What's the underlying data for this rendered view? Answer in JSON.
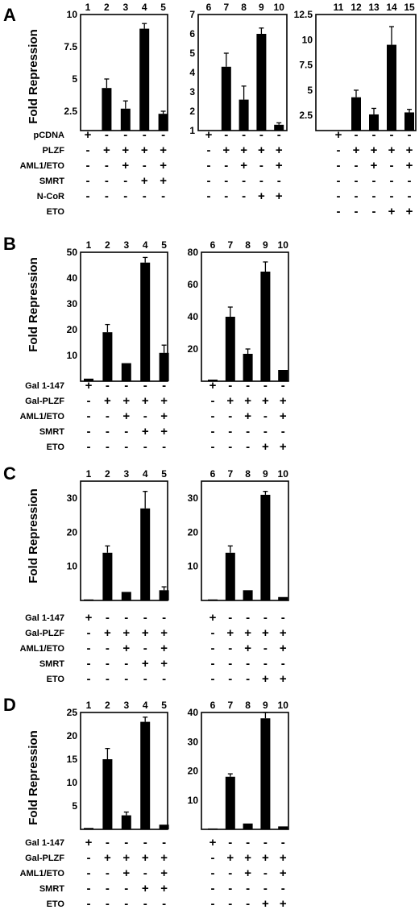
{
  "ylabel": "Fold Repression",
  "chart_data": [
    {
      "panel": "A",
      "type": "bar",
      "rows": [
        "pCDNA",
        "PLZF",
        "AML1/ETO",
        "SMRT",
        "N-CoR",
        "ETO"
      ],
      "charts": [
        {
          "lanes": [
            "1",
            "2",
            "3",
            "4",
            "5"
          ],
          "values": [
            1.0,
            4.3,
            2.7,
            8.9,
            2.3
          ],
          "errors": [
            0,
            0.7,
            0.6,
            0.4,
            0.2
          ],
          "ylim": [
            1,
            10
          ],
          "yticks": [
            "2.5",
            "5",
            "7.5",
            "10"
          ],
          "signs": [
            [
              "+",
              "-",
              "-",
              "-",
              "-"
            ],
            [
              "-",
              "+",
              "+",
              "+",
              "+"
            ],
            [
              "-",
              "-",
              "+",
              "-",
              "+"
            ],
            [
              "-",
              "-",
              "-",
              "+",
              "+"
            ],
            [
              "-",
              "-",
              "-",
              "-",
              "-"
            ],
            null
          ]
        },
        {
          "lanes": [
            "6",
            "7",
            "8",
            "9",
            "10"
          ],
          "values": [
            1.0,
            4.3,
            2.6,
            6.0,
            1.3
          ],
          "errors": [
            0,
            0.7,
            0.7,
            0.3,
            0.1
          ],
          "ylim": [
            1,
            7
          ],
          "yticks": [
            "1",
            "2",
            "3",
            "4",
            "5",
            "6",
            "7"
          ],
          "signs": [
            [
              "+",
              "-",
              "-",
              "-",
              "-"
            ],
            [
              "-",
              "+",
              "+",
              "+",
              "+"
            ],
            [
              "-",
              "-",
              "+",
              "-",
              "+"
            ],
            [
              "-",
              "-",
              "-",
              "-",
              "-"
            ],
            [
              "-",
              "-",
              "-",
              "+",
              "+"
            ],
            null
          ]
        },
        {
          "lanes": [
            "11",
            "12",
            "13",
            "14",
            "15"
          ],
          "values": [
            1.0,
            4.3,
            2.6,
            9.5,
            2.8
          ],
          "errors": [
            0,
            0.7,
            0.6,
            1.8,
            0.3
          ],
          "ylim": [
            1,
            12.5
          ],
          "yticks": [
            "2.5",
            "5",
            "7.5",
            "10",
            "12.5"
          ],
          "signs": [
            [
              "+",
              "-",
              "-",
              "-",
              "-"
            ],
            [
              "-",
              "+",
              "+",
              "+",
              "+"
            ],
            [
              "-",
              "-",
              "+",
              "-",
              "+"
            ],
            [
              "-",
              "-",
              "-",
              "-",
              "-"
            ],
            [
              "-",
              "-",
              "-",
              "-",
              "-"
            ],
            [
              "-",
              "-",
              "-",
              "+",
              "+"
            ]
          ]
        }
      ]
    },
    {
      "panel": "B",
      "type": "bar",
      "rows": [
        "Gal 1-147",
        "Gal-PLZF",
        "AML1/ETO",
        "SMRT",
        "ETO"
      ],
      "charts": [
        {
          "lanes": [
            "1",
            "2",
            "3",
            "4",
            "5"
          ],
          "values": [
            1,
            19,
            7,
            46,
            11
          ],
          "errors": [
            0,
            3,
            0,
            2,
            3
          ],
          "ylim": [
            0,
            50
          ],
          "yticks": [
            "10",
            "20",
            "30",
            "40",
            "50"
          ],
          "signs": [
            [
              "+",
              "-",
              "-",
              "-",
              "-"
            ],
            [
              "-",
              "+",
              "+",
              "+",
              "+"
            ],
            [
              "-",
              "-",
              "+",
              "-",
              "+"
            ],
            [
              "-",
              "-",
              "-",
              "+",
              "+"
            ],
            [
              "-",
              "-",
              "-",
              "-",
              "-"
            ]
          ]
        },
        {
          "lanes": [
            "6",
            "7",
            "8",
            "9",
            "10"
          ],
          "values": [
            1,
            40,
            17,
            68,
            7
          ],
          "errors": [
            0,
            6,
            3,
            6,
            0
          ],
          "ylim": [
            0,
            80
          ],
          "yticks": [
            "20",
            "40",
            "60",
            "80"
          ],
          "signs": [
            [
              "+",
              "-",
              "-",
              "-",
              "-"
            ],
            [
              "-",
              "+",
              "+",
              "+",
              "+"
            ],
            [
              "-",
              "-",
              "+",
              "-",
              "+"
            ],
            [
              "-",
              "-",
              "-",
              "-",
              "-"
            ],
            [
              "-",
              "-",
              "-",
              "+",
              "+"
            ]
          ]
        }
      ]
    },
    {
      "panel": "C",
      "type": "bar",
      "rows": [
        "Gal 1-147",
        "Gal-PLZF",
        "AML1/ETO",
        "SMRT",
        "ETO"
      ],
      "charts": [
        {
          "lanes": [
            "1",
            "2",
            "3",
            "4",
            "5"
          ],
          "values": [
            0.3,
            14,
            2.5,
            27,
            3
          ],
          "errors": [
            0,
            2,
            0,
            5,
            1
          ],
          "ylim": [
            0,
            35
          ],
          "yticks": [
            "10",
            "20",
            "30"
          ],
          "signs": [
            [
              "+",
              "-",
              "-",
              "-",
              "-"
            ],
            [
              "-",
              "+",
              "+",
              "+",
              "+"
            ],
            [
              "-",
              "-",
              "+",
              "-",
              "+"
            ],
            [
              "-",
              "-",
              "-",
              "+",
              "+"
            ],
            [
              "-",
              "-",
              "-",
              "-",
              "-"
            ]
          ]
        },
        {
          "lanes": [
            "6",
            "7",
            "8",
            "9",
            "10"
          ],
          "values": [
            0.3,
            14,
            3,
            31,
            1
          ],
          "errors": [
            0,
            2,
            0,
            1,
            0
          ],
          "ylim": [
            0,
            35
          ],
          "yticks": [
            "10",
            "20",
            "30"
          ],
          "signs": [
            [
              "+",
              "-",
              "-",
              "-",
              "-"
            ],
            [
              "-",
              "+",
              "+",
              "+",
              "+"
            ],
            [
              "-",
              "-",
              "+",
              "-",
              "+"
            ],
            [
              "-",
              "-",
              "-",
              "-",
              "-"
            ],
            [
              "-",
              "-",
              "-",
              "+",
              "+"
            ]
          ]
        }
      ]
    },
    {
      "panel": "D",
      "type": "bar",
      "rows": [
        "Gal 1-147",
        "Gal-PLZF",
        "AML1/ETO",
        "SMRT",
        "ETO"
      ],
      "charts": [
        {
          "lanes": [
            "1",
            "2",
            "3",
            "4",
            "5"
          ],
          "values": [
            0.3,
            15,
            3,
            23,
            1
          ],
          "errors": [
            0,
            2.3,
            0.7,
            1,
            0
          ],
          "ylim": [
            0,
            25
          ],
          "yticks": [
            "5",
            "10",
            "15",
            "20",
            "25"
          ],
          "signs": [
            [
              "+",
              "-",
              "-",
              "-",
              "-"
            ],
            [
              "-",
              "+",
              "+",
              "+",
              "+"
            ],
            [
              "-",
              "-",
              "+",
              "-",
              "+"
            ],
            [
              "-",
              "-",
              "-",
              "+",
              "+"
            ],
            [
              "-",
              "-",
              "-",
              "-",
              "-"
            ]
          ]
        },
        {
          "lanes": [
            "6",
            "7",
            "8",
            "9",
            "10"
          ],
          "values": [
            0.3,
            18,
            2,
            38,
            1
          ],
          "errors": [
            0,
            1,
            0,
            2,
            0
          ],
          "ylim": [
            0,
            40
          ],
          "yticks": [
            "10",
            "20",
            "30",
            "40"
          ],
          "signs": [
            [
              "+",
              "-",
              "-",
              "-",
              "-"
            ],
            [
              "-",
              "+",
              "+",
              "+",
              "+"
            ],
            [
              "-",
              "-",
              "+",
              "-",
              "+"
            ],
            [
              "-",
              "-",
              "-",
              "-",
              "-"
            ],
            [
              "-",
              "-",
              "-",
              "+",
              "+"
            ]
          ]
        }
      ]
    }
  ]
}
